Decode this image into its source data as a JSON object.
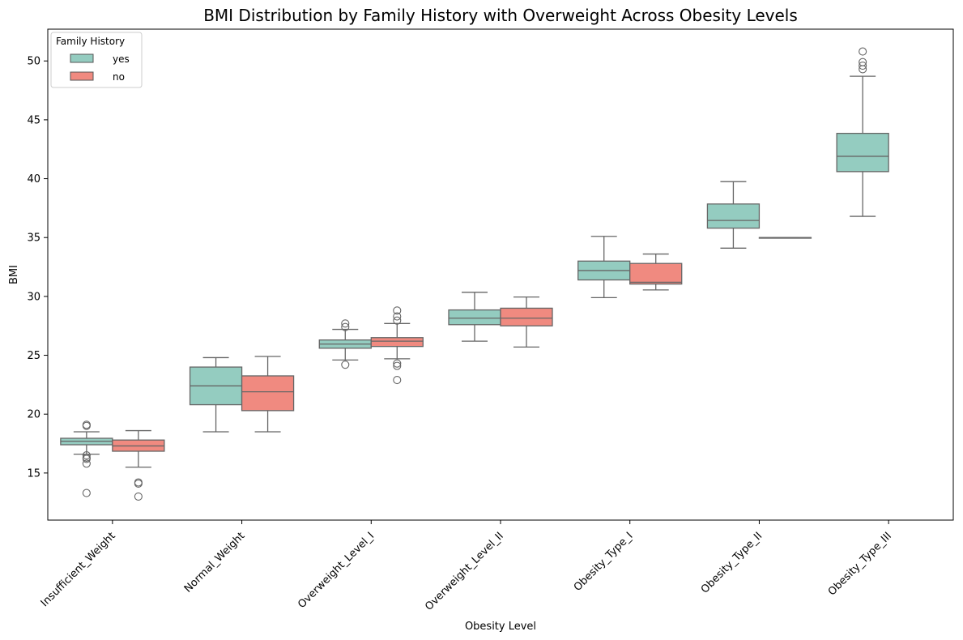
{
  "chart_data": {
    "type": "box",
    "title": "BMI Distribution by Family History with Overweight Across Obesity Levels",
    "xlabel": "Obesity Level",
    "ylabel": "BMI",
    "ylim": [
      11,
      52.7
    ],
    "yticks": [
      15,
      20,
      25,
      30,
      35,
      40,
      45,
      50
    ],
    "grid": false,
    "legend": {
      "title": "Family History",
      "position": "top-left",
      "entries": [
        {
          "name": "yes",
          "color": "#94ccc0"
        },
        {
          "name": "no",
          "color": "#f08a80"
        }
      ]
    },
    "categories": [
      "Insufficient_Weight",
      "Normal_Weight",
      "Overweight_Level_I",
      "Overweight_Level_II",
      "Obesity_Type_I",
      "Obesity_Type_II",
      "Obesity_Type_III"
    ],
    "series": [
      {
        "name": "yes",
        "color": "#94ccc0",
        "boxes": [
          {
            "category": "Insufficient_Weight",
            "whisker_low": 16.6,
            "q1": 17.4,
            "median": 17.7,
            "q3": 17.95,
            "whisker_high": 18.5,
            "outliers": [
              19.1,
              19.0,
              16.5,
              16.3,
              16.2,
              15.8,
              13.3
            ]
          },
          {
            "category": "Normal_Weight",
            "whisker_low": 18.5,
            "q1": 20.8,
            "median": 22.4,
            "q3": 24.0,
            "whisker_high": 24.8,
            "outliers": []
          },
          {
            "category": "Overweight_Level_I",
            "whisker_low": 24.6,
            "q1": 25.6,
            "median": 25.95,
            "q3": 26.3,
            "whisker_high": 27.2,
            "outliers": [
              27.7,
              27.4,
              24.2
            ]
          },
          {
            "category": "Overweight_Level_II",
            "whisker_low": 26.2,
            "q1": 27.6,
            "median": 28.15,
            "q3": 28.85,
            "whisker_high": 30.35,
            "outliers": []
          },
          {
            "category": "Obesity_Type_I",
            "whisker_low": 29.9,
            "q1": 31.4,
            "median": 32.2,
            "q3": 33.0,
            "whisker_high": 35.1,
            "outliers": []
          },
          {
            "category": "Obesity_Type_II",
            "whisker_low": 34.1,
            "q1": 35.8,
            "median": 36.45,
            "q3": 37.85,
            "whisker_high": 39.75,
            "outliers": []
          },
          {
            "category": "Obesity_Type_III",
            "whisker_low": 36.8,
            "q1": 40.6,
            "median": 41.9,
            "q3": 43.85,
            "whisker_high": 48.7,
            "outliers": [
              50.8,
              49.9,
              49.6,
              49.3
            ]
          }
        ]
      },
      {
        "name": "no",
        "color": "#f08a80",
        "boxes": [
          {
            "category": "Insufficient_Weight",
            "whisker_low": 15.5,
            "q1": 16.85,
            "median": 17.3,
            "q3": 17.8,
            "whisker_high": 18.6,
            "outliers": [
              14.2,
              14.1,
              13.0
            ]
          },
          {
            "category": "Normal_Weight",
            "whisker_low": 18.5,
            "q1": 20.3,
            "median": 21.9,
            "q3": 23.25,
            "whisker_high": 24.9,
            "outliers": []
          },
          {
            "category": "Overweight_Level_I",
            "whisker_low": 24.7,
            "q1": 25.75,
            "median": 26.2,
            "q3": 26.5,
            "whisker_high": 27.7,
            "outliers": [
              28.8,
              28.3,
              27.95,
              24.3,
              24.1,
              22.9
            ]
          },
          {
            "category": "Overweight_Level_II",
            "whisker_low": 25.7,
            "q1": 27.5,
            "median": 28.15,
            "q3": 29.0,
            "whisker_high": 29.95,
            "outliers": []
          },
          {
            "category": "Obesity_Type_I",
            "whisker_low": 30.55,
            "q1": 31.05,
            "median": 31.2,
            "q3": 32.8,
            "whisker_high": 33.6,
            "outliers": []
          },
          {
            "category": "Obesity_Type_II",
            "whisker_low": 35.0,
            "q1": 35.0,
            "median": 35.0,
            "q3": 35.0,
            "whisker_high": 35.0,
            "outliers": []
          },
          null
        ]
      }
    ]
  }
}
